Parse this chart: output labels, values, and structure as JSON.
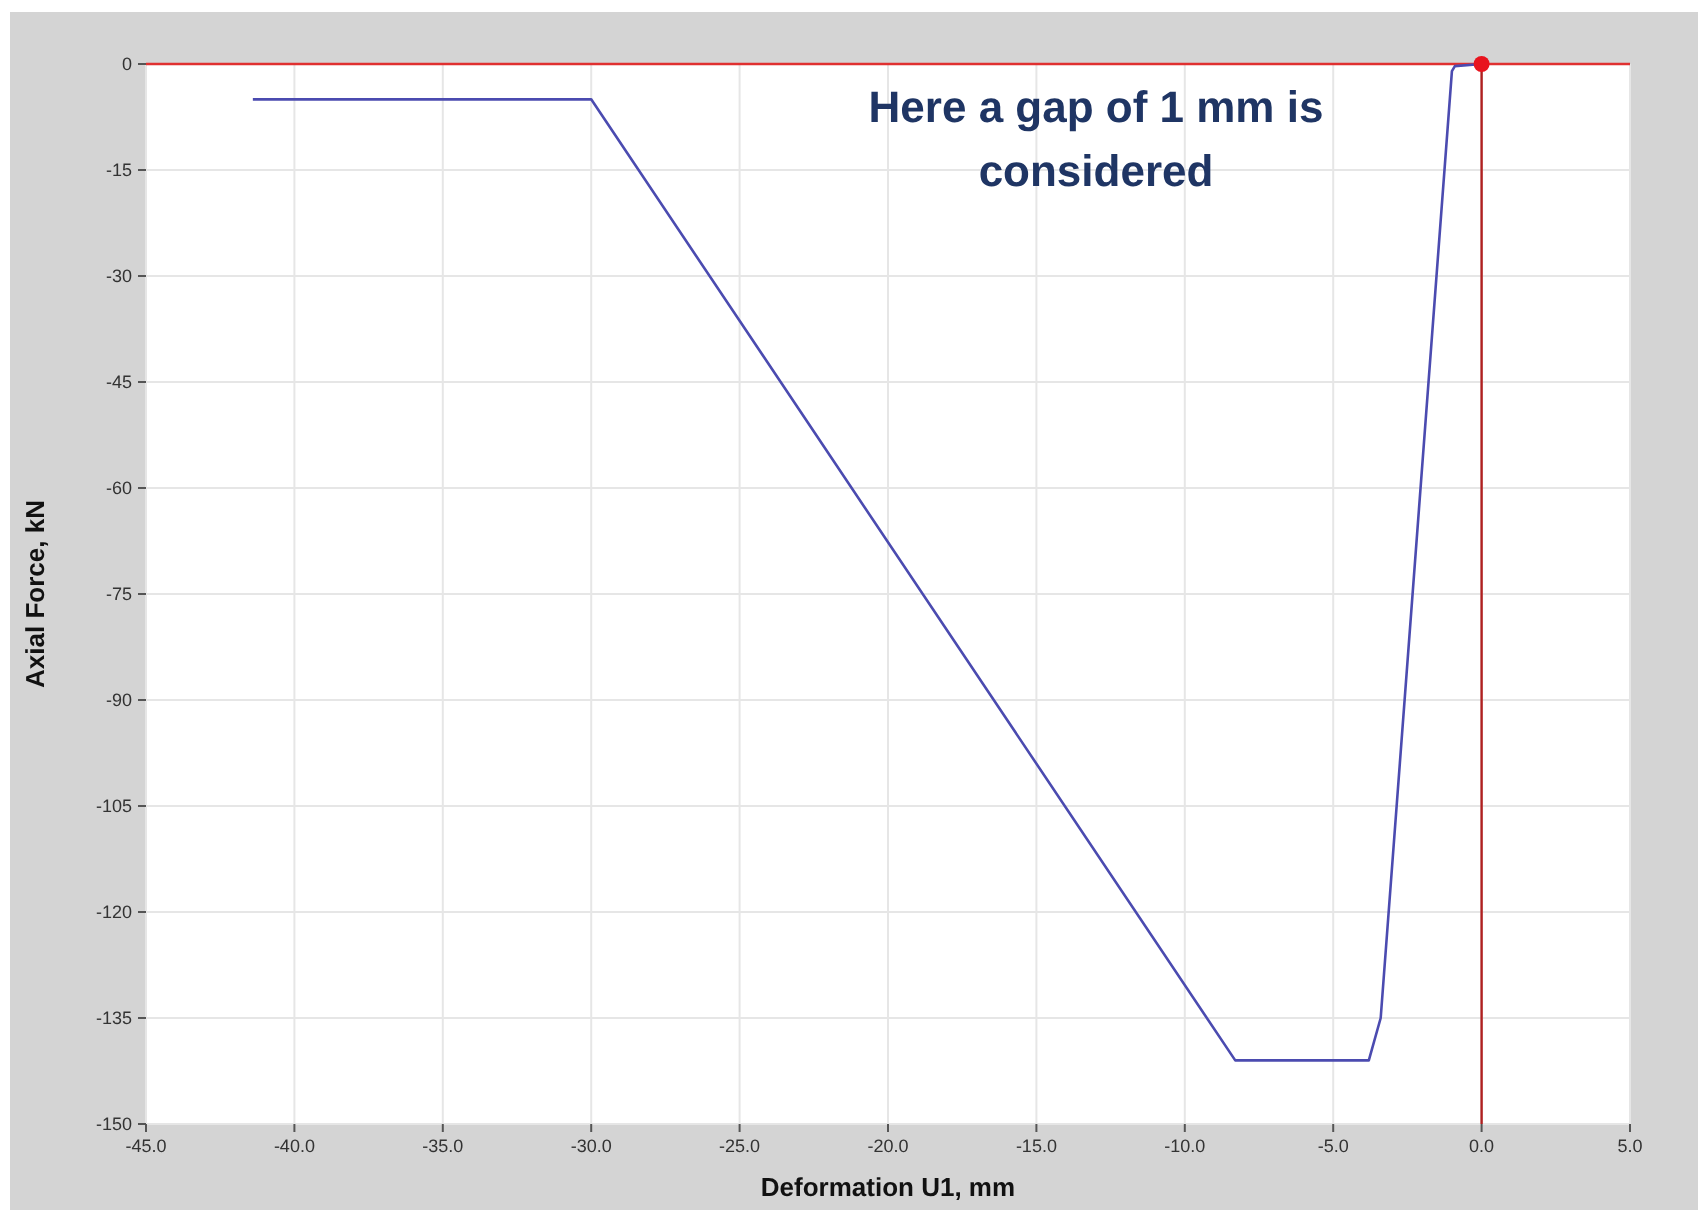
{
  "chart_data": {
    "type": "line",
    "xlabel": "Deformation U1, mm",
    "ylabel": "Axial Force, kN",
    "xlim": [
      -45,
      5
    ],
    "ylim": [
      -150,
      0
    ],
    "xticks": [
      {
        "value": -45,
        "label": "-45.0"
      },
      {
        "value": -40,
        "label": "-40.0"
      },
      {
        "value": -35,
        "label": "-35.0"
      },
      {
        "value": -30,
        "label": "-30.0"
      },
      {
        "value": -25,
        "label": "-25.0"
      },
      {
        "value": -20,
        "label": "-20.0"
      },
      {
        "value": -15,
        "label": "-15.0"
      },
      {
        "value": -10,
        "label": "-10.0"
      },
      {
        "value": -5,
        "label": "-5.0"
      },
      {
        "value": 0,
        "label": "0.0"
      },
      {
        "value": 5,
        "label": "5.0"
      }
    ],
    "yticks": [
      0,
      -15,
      -30,
      -45,
      -60,
      -75,
      -90,
      -105,
      -120,
      -135,
      -150
    ],
    "grid": true,
    "series": [
      {
        "color": "#4b4bb0",
        "x": [
          -41.4,
          -30,
          -8.3,
          -3.8,
          -3.4,
          -1,
          -0.9,
          0
        ],
        "values": [
          -5,
          -5,
          -141,
          -141,
          -135,
          -1,
          -0.3,
          0
        ]
      },
      {
        "type": "scatter",
        "color": "#e8141e",
        "marker": "circle",
        "x": [
          0
        ],
        "values": [
          0
        ]
      }
    ],
    "ref_lines": [
      {
        "axis": "y",
        "value": 0,
        "color": "#e03030"
      },
      {
        "axis": "x",
        "value": 0,
        "color": "#b02020"
      }
    ],
    "annotations": [
      "Here a gap of 1 mm is considered"
    ]
  }
}
